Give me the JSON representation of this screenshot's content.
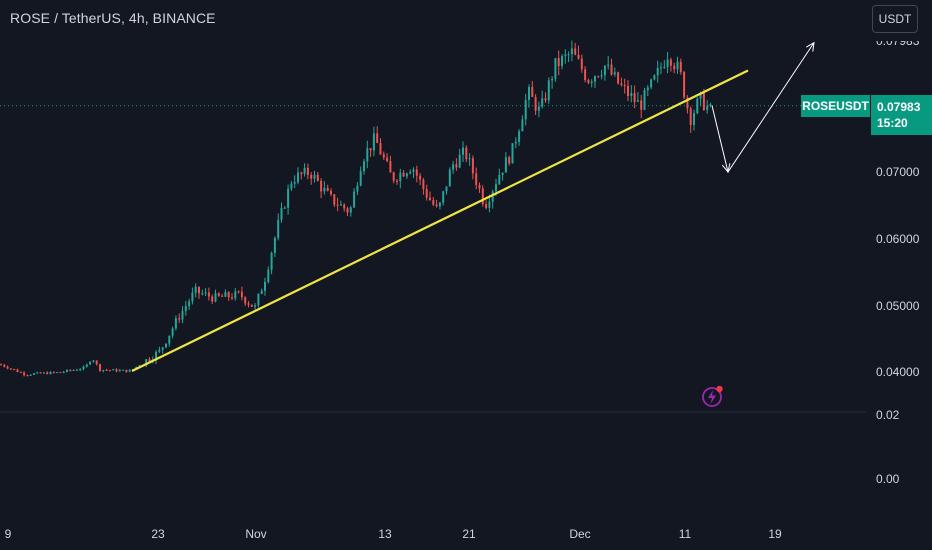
{
  "header": {
    "title": "ROSE / TetherUS, 4h, BINANCE"
  },
  "currency_button": {
    "label": "USDT"
  },
  "price_label": {
    "symbol": "ROSEUSDT",
    "price": "0.07983",
    "countdown": "15:20"
  },
  "icons": {
    "alert": "lightning-icon"
  },
  "colors": {
    "up": "#26a69a",
    "down": "#ef5350",
    "trendline": "#f0e442",
    "arrow": "#ffffff",
    "background": "#131722",
    "badge": "#089981"
  },
  "chart_data": {
    "type": "candlestick",
    "x_tick_labels": [
      "9",
      "23",
      "Nov",
      "13",
      "21",
      "Dec",
      "11",
      "19"
    ],
    "y_tick_labels": [
      "0.07000",
      "0.06000",
      "0.05000",
      "0.04000",
      "0.02",
      "0.00"
    ],
    "upper_axis_partial_label": "0.07983",
    "current_price": 0.07983,
    "grid": false,
    "price_path": [
      {
        "t": 0,
        "p": 0.041
      },
      {
        "t": 25,
        "p": 0.0395
      },
      {
        "t": 60,
        "p": 0.0398
      },
      {
        "t": 85,
        "p": 0.0405
      },
      {
        "t": 92,
        "p": 0.042
      },
      {
        "t": 100,
        "p": 0.0402
      },
      {
        "t": 130,
        "p": 0.04
      },
      {
        "t": 160,
        "p": 0.043
      },
      {
        "t": 178,
        "p": 0.048
      },
      {
        "t": 195,
        "p": 0.052
      },
      {
        "t": 215,
        "p": 0.051
      },
      {
        "t": 240,
        "p": 0.0515
      },
      {
        "t": 255,
        "p": 0.0495
      },
      {
        "t": 265,
        "p": 0.054
      },
      {
        "t": 278,
        "p": 0.062
      },
      {
        "t": 292,
        "p": 0.069
      },
      {
        "t": 310,
        "p": 0.07
      },
      {
        "t": 330,
        "p": 0.066
      },
      {
        "t": 350,
        "p": 0.064
      },
      {
        "t": 362,
        "p": 0.072
      },
      {
        "t": 375,
        "p": 0.075
      },
      {
        "t": 392,
        "p": 0.069
      },
      {
        "t": 412,
        "p": 0.071
      },
      {
        "t": 425,
        "p": 0.067
      },
      {
        "t": 438,
        "p": 0.064
      },
      {
        "t": 452,
        "p": 0.071
      },
      {
        "t": 465,
        "p": 0.073
      },
      {
        "t": 478,
        "p": 0.068
      },
      {
        "t": 485,
        "p": 0.065
      },
      {
        "t": 500,
        "p": 0.07
      },
      {
        "t": 512,
        "p": 0.073
      },
      {
        "t": 528,
        "p": 0.082
      },
      {
        "t": 540,
        "p": 0.079
      },
      {
        "t": 555,
        "p": 0.086
      },
      {
        "t": 572,
        "p": 0.088
      },
      {
        "t": 588,
        "p": 0.084
      },
      {
        "t": 605,
        "p": 0.086
      },
      {
        "t": 620,
        "p": 0.083
      },
      {
        "t": 640,
        "p": 0.08
      },
      {
        "t": 655,
        "p": 0.084
      },
      {
        "t": 668,
        "p": 0.088
      },
      {
        "t": 680,
        "p": 0.085
      },
      {
        "t": 690,
        "p": 0.078
      },
      {
        "t": 700,
        "p": 0.081
      },
      {
        "t": 712,
        "p": 0.079
      }
    ],
    "trendline": {
      "start": {
        "t": 132,
        "p": 0.04
      },
      "end": {
        "t": 748,
        "p": 0.0853
      }
    },
    "projection_path": [
      {
        "t": 712,
        "p": 0.08
      },
      {
        "t": 728,
        "p": 0.07
      },
      {
        "t": 814,
        "p": 0.0895
      }
    ]
  }
}
